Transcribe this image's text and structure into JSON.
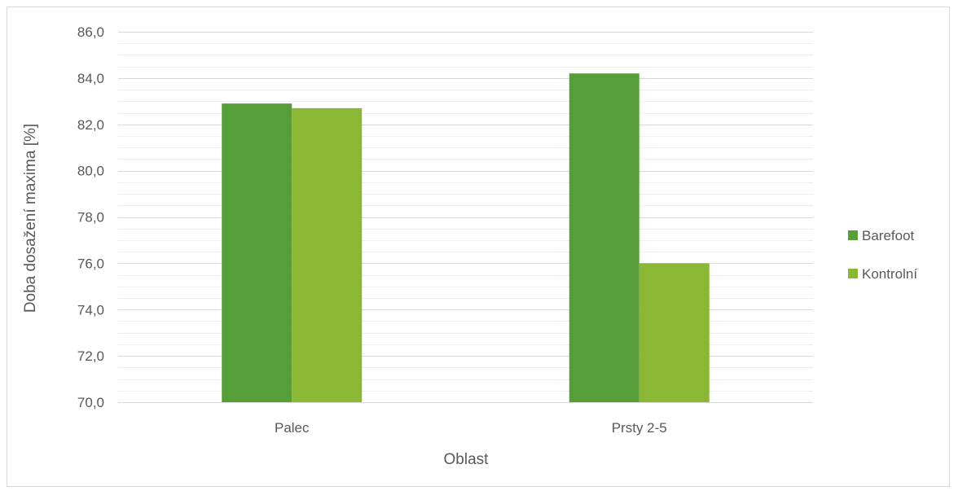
{
  "chart_data": {
    "type": "bar",
    "categories": [
      "Palec",
      "Prsty 2-5"
    ],
    "series": [
      {
        "name": "Barefoot",
        "values": [
          82.9,
          84.2
        ],
        "color": "#559e38"
      },
      {
        "name": "Kontrolní",
        "values": [
          82.7,
          76.0
        ],
        "color": "#8bb834"
      }
    ],
    "title": "",
    "xlabel": "Oblast",
    "ylabel": "Doba dosažení maxima [%]",
    "ylim": [
      70.0,
      86.0
    ],
    "y_ticks": [
      "70,0",
      "72,0",
      "74,0",
      "76,0",
      "78,0",
      "80,0",
      "82,0",
      "84,0",
      "86,0"
    ],
    "grid": "major and minor horizontal",
    "legend_position": "right"
  }
}
